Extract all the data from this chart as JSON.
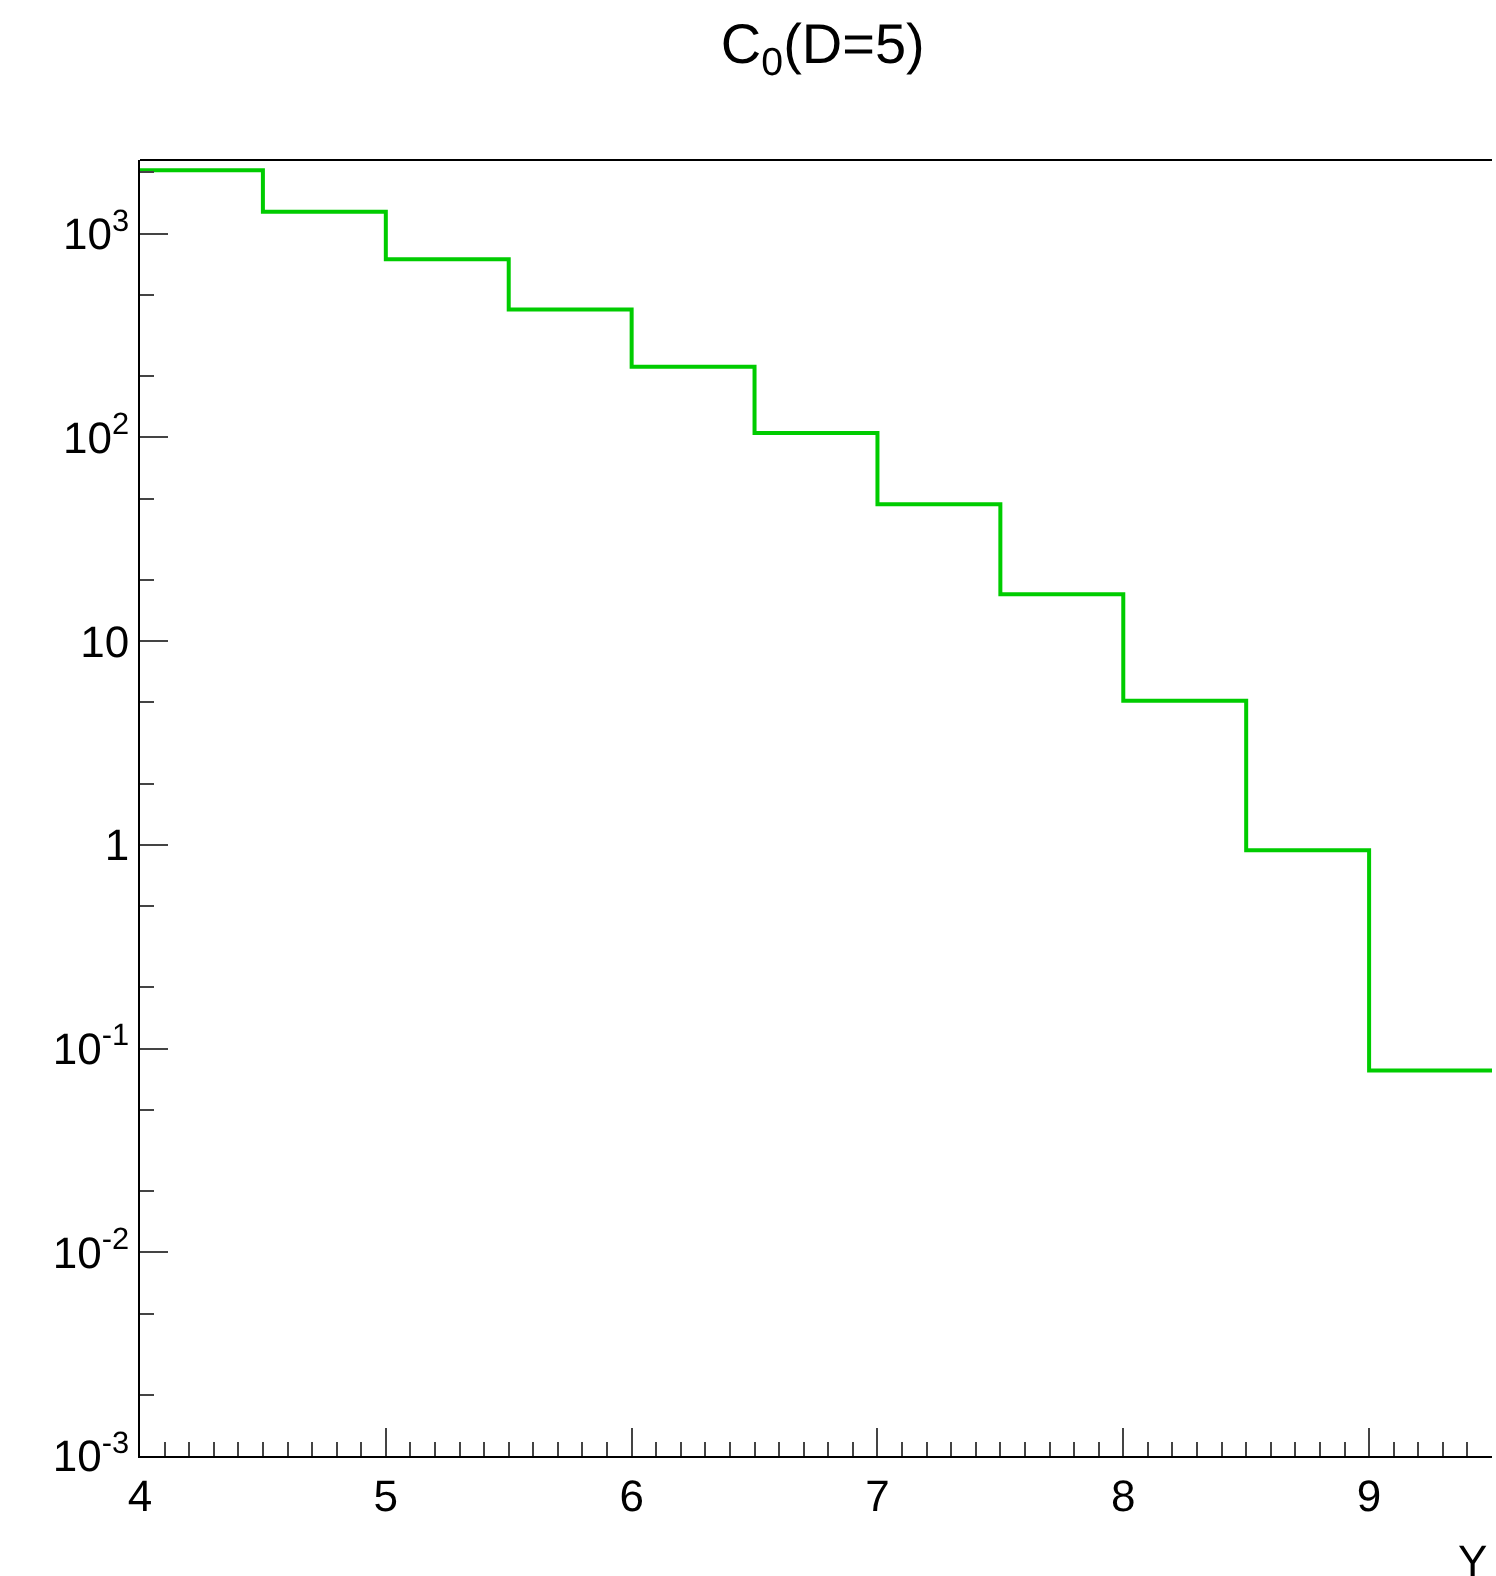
{
  "chart_data": {
    "type": "histogram",
    "title": "C$_{0}$(D=5)",
    "xlabel": "Y",
    "bins": [
      4,
      4.5,
      5,
      5.5,
      6,
      6.5,
      7,
      7.5,
      8,
      8.5,
      9,
      9.5
    ],
    "values": [
      2050,
      1280,
      750,
      425,
      222,
      105,
      47,
      17,
      5.1,
      0.94,
      0.078
    ],
    "color": "#00cc00",
    "log": "y",
    "xlim": [
      4,
      9.5
    ],
    "xticks": [
      4,
      5,
      6,
      7,
      8,
      9
    ],
    "ylim": [
      0.001,
      2300
    ],
    "yticks": [
      {
        "value": 0.001,
        "label": "10$^{-3}$"
      },
      {
        "value": 0.01,
        "label": "10$^{-2}$"
      },
      {
        "value": 0.1,
        "label": "10$^{-1}$"
      },
      1,
      10,
      {
        "value": 100,
        "label": "10$^{2}$"
      },
      {
        "value": 1000,
        "label": "10$^{3}$"
      }
    ]
  }
}
